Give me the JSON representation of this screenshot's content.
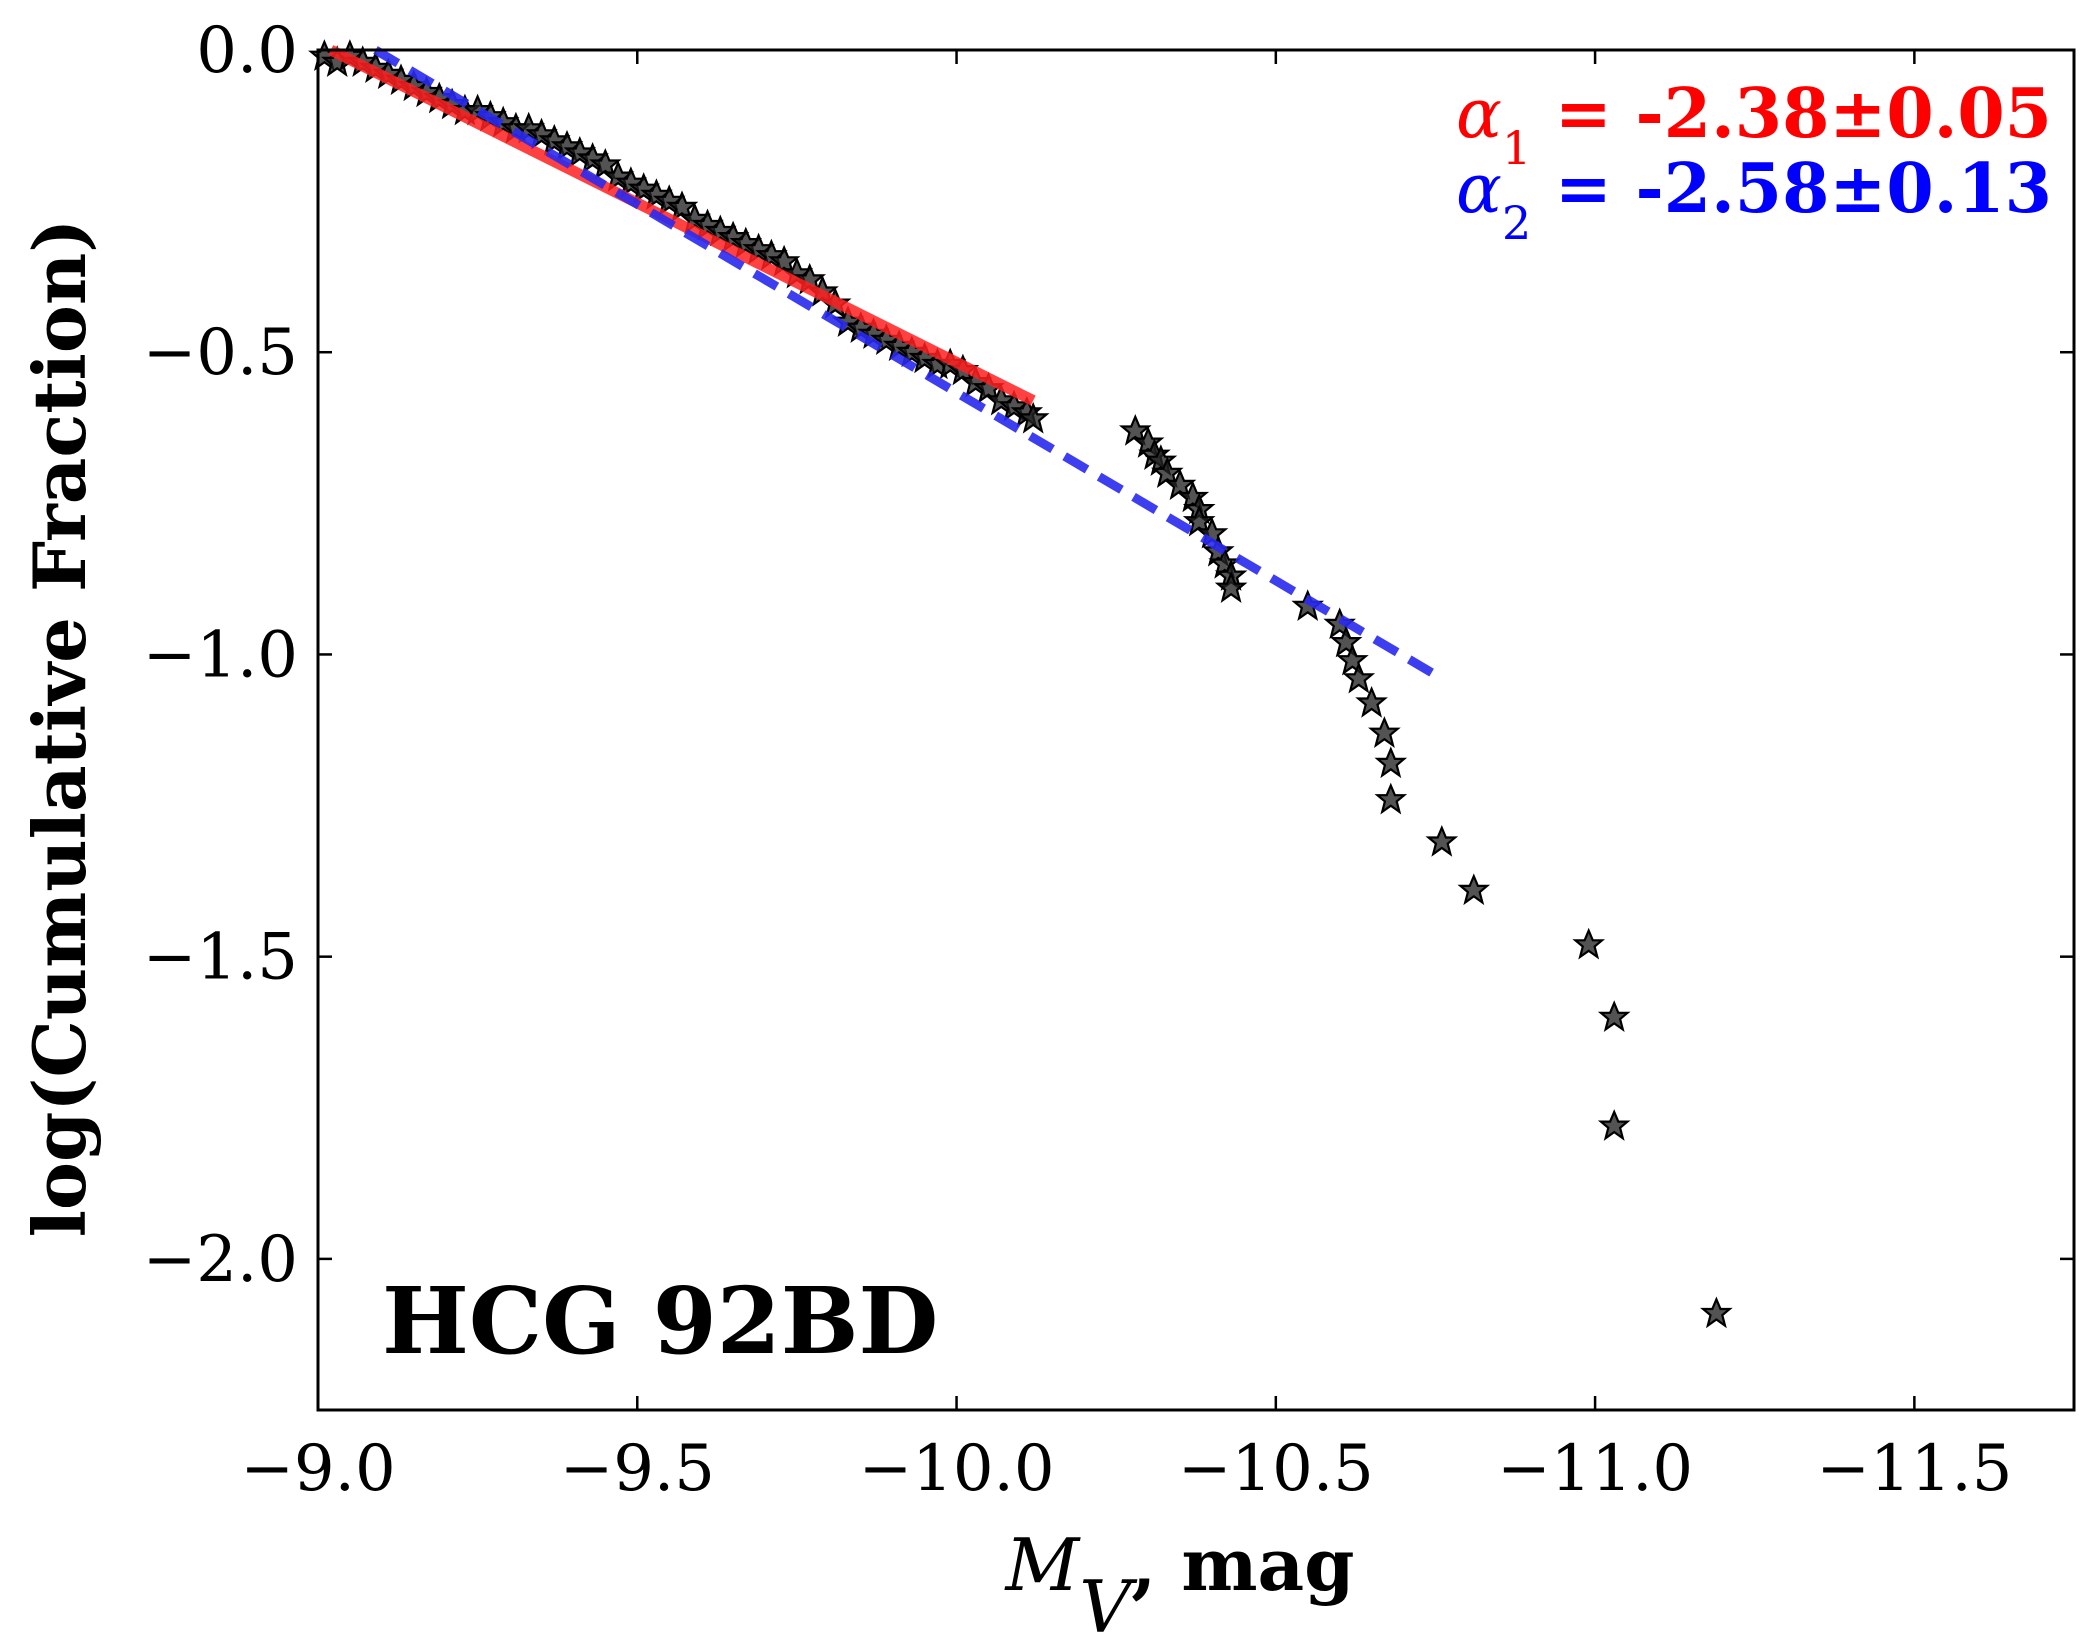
{
  "chart_data": {
    "type": "scatter",
    "title": "",
    "xlabel": "M_V, mag",
    "xlabel_parts": {
      "symbol": "M",
      "subscript": "V",
      "unit": ", mag"
    },
    "ylabel": "log(Cumulative Fraction)",
    "xlim": [
      -9.0,
      -11.75
    ],
    "ylim": [
      -2.25,
      0.0
    ],
    "x_ticks": [
      -9.0,
      -9.5,
      -10.0,
      -10.5,
      -11.0,
      -11.5
    ],
    "x_tick_labels": [
      "−9.0",
      "−9.5",
      "−10.0",
      "−10.5",
      "−11.0",
      "−11.5"
    ],
    "y_ticks": [
      0.0,
      -0.5,
      -1.0,
      -1.5,
      -2.0
    ],
    "y_tick_labels": [
      "0.0",
      "−0.5",
      "−1.0",
      "−1.5",
      "−2.0"
    ],
    "grid": false,
    "panel_label": "HCG 92BD",
    "series": [
      {
        "name": "data",
        "kind": "scatter",
        "marker": "star",
        "color": "#222222",
        "points": [
          [
            -9.01,
            -0.01
          ],
          [
            -9.03,
            -0.02
          ],
          [
            -9.05,
            -0.01
          ],
          [
            -9.07,
            -0.02
          ],
          [
            -9.09,
            -0.03
          ],
          [
            -9.11,
            -0.04
          ],
          [
            -9.13,
            -0.05
          ],
          [
            -9.15,
            -0.06
          ],
          [
            -9.17,
            -0.07
          ],
          [
            -9.19,
            -0.08
          ],
          [
            -9.21,
            -0.09
          ],
          [
            -9.23,
            -0.1
          ],
          [
            -9.25,
            -0.1
          ],
          [
            -9.27,
            -0.11
          ],
          [
            -9.29,
            -0.12
          ],
          [
            -9.31,
            -0.13
          ],
          [
            -9.33,
            -0.13
          ],
          [
            -9.35,
            -0.14
          ],
          [
            -9.37,
            -0.15
          ],
          [
            -9.39,
            -0.16
          ],
          [
            -9.41,
            -0.17
          ],
          [
            -9.43,
            -0.18
          ],
          [
            -9.45,
            -0.19
          ],
          [
            -9.47,
            -0.21
          ],
          [
            -9.49,
            -0.22
          ],
          [
            -9.51,
            -0.23
          ],
          [
            -9.53,
            -0.24
          ],
          [
            -9.55,
            -0.25
          ],
          [
            -9.57,
            -0.26
          ],
          [
            -9.59,
            -0.28
          ],
          [
            -9.61,
            -0.29
          ],
          [
            -9.63,
            -0.3
          ],
          [
            -9.65,
            -0.31
          ],
          [
            -9.67,
            -0.32
          ],
          [
            -9.69,
            -0.33
          ],
          [
            -9.71,
            -0.34
          ],
          [
            -9.73,
            -0.35
          ],
          [
            -9.75,
            -0.37
          ],
          [
            -9.77,
            -0.38
          ],
          [
            -9.79,
            -0.4
          ],
          [
            -9.81,
            -0.42
          ],
          [
            -9.83,
            -0.45
          ],
          [
            -9.85,
            -0.46
          ],
          [
            -9.87,
            -0.47
          ],
          [
            -9.89,
            -0.48
          ],
          [
            -9.91,
            -0.49
          ],
          [
            -9.93,
            -0.5
          ],
          [
            -9.95,
            -0.51
          ],
          [
            -9.97,
            -0.52
          ],
          [
            -9.99,
            -0.52
          ],
          [
            -10.01,
            -0.53
          ],
          [
            -10.03,
            -0.55
          ],
          [
            -10.05,
            -0.56
          ],
          [
            -10.07,
            -0.58
          ],
          [
            -10.09,
            -0.59
          ],
          [
            -10.11,
            -0.6
          ],
          [
            -10.12,
            -0.61
          ],
          [
            -10.28,
            -0.63
          ],
          [
            -10.3,
            -0.65
          ],
          [
            -10.31,
            -0.67
          ],
          [
            -10.32,
            -0.68
          ],
          [
            -10.33,
            -0.7
          ],
          [
            -10.35,
            -0.72
          ],
          [
            -10.37,
            -0.74
          ],
          [
            -10.38,
            -0.76
          ],
          [
            -10.38,
            -0.78
          ],
          [
            -10.4,
            -0.8
          ],
          [
            -10.41,
            -0.83
          ],
          [
            -10.42,
            -0.85
          ],
          [
            -10.43,
            -0.87
          ],
          [
            -10.43,
            -0.89
          ],
          [
            -10.55,
            -0.92
          ],
          [
            -10.6,
            -0.95
          ],
          [
            -10.61,
            -0.98
          ],
          [
            -10.62,
            -1.01
          ],
          [
            -10.63,
            -1.04
          ],
          [
            -10.65,
            -1.08
          ],
          [
            -10.67,
            -1.13
          ],
          [
            -10.68,
            -1.18
          ],
          [
            -10.68,
            -1.24
          ],
          [
            -10.76,
            -1.31
          ],
          [
            -10.81,
            -1.39
          ],
          [
            -10.99,
            -1.48
          ],
          [
            -11.03,
            -1.6
          ],
          [
            -11.03,
            -1.78
          ],
          [
            -11.19,
            -2.09
          ]
        ]
      },
      {
        "name": "fit1",
        "kind": "line",
        "style": "solid",
        "color": "#ff2020",
        "points": [
          [
            -9.02,
            0.0
          ],
          [
            -10.12,
            -0.58
          ]
        ]
      },
      {
        "name": "fit2",
        "kind": "line",
        "style": "dashed",
        "color": "#2a2af0",
        "points": [
          [
            -9.09,
            0.0
          ],
          [
            -10.76,
            -1.04
          ]
        ]
      }
    ],
    "annotations": [
      {
        "symbol": "α",
        "subscript": "1",
        "text": " = -2.38±0.05",
        "color": "#ff0000",
        "placement": "top-right"
      },
      {
        "symbol": "α",
        "subscript": "2",
        "text": " = -2.58±0.13",
        "color": "#0000ff",
        "placement": "top-right"
      }
    ]
  }
}
